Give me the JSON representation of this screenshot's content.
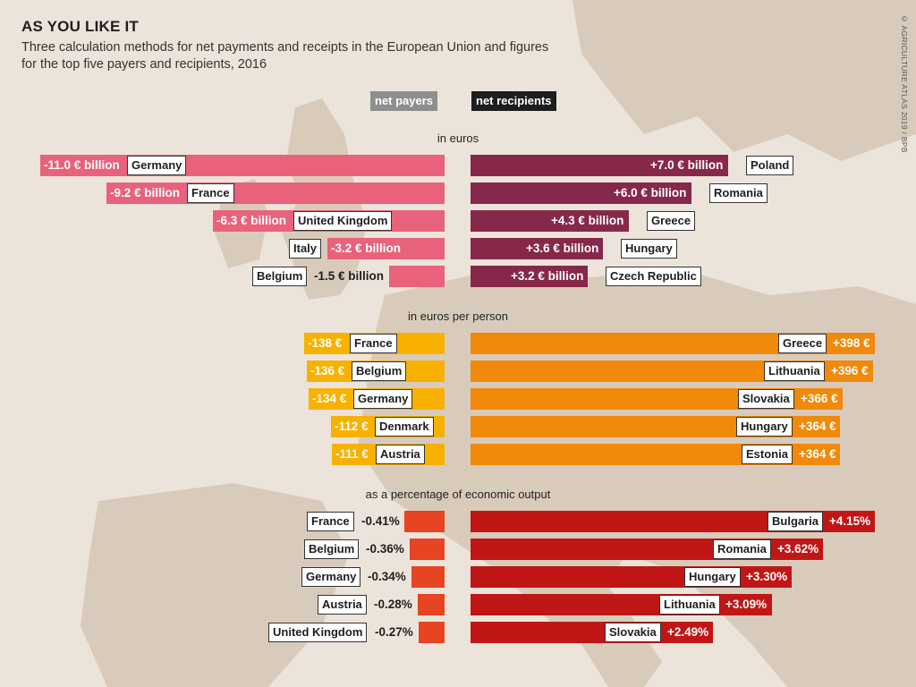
{
  "header": {
    "title": "AS YOU LIKE IT",
    "subtitle": "Three calculation methods for net payments and receipts in the European Union and figures for the top five payers and recipients, 2016",
    "credit": "© AGRICULTURE ATLAS 2019 / BPB"
  },
  "legend": {
    "payers": "net payers",
    "recipients": "net recipients"
  },
  "chart_data": [
    {
      "type": "bar",
      "title": "in euros",
      "unit": "billion euros",
      "colors": {
        "payers": "#e8627c",
        "recipients": "#86284a"
      },
      "payers": [
        {
          "country": "Germany",
          "value": -11.0,
          "label": "-11.0 € billion"
        },
        {
          "country": "France",
          "value": -9.2,
          "label": "-9.2 € billion"
        },
        {
          "country": "United Kingdom",
          "value": -6.3,
          "label": "-6.3 € billion"
        },
        {
          "country": "Italy",
          "value": -3.2,
          "label": "-3.2 € billion"
        },
        {
          "country": "Belgium",
          "value": -1.5,
          "label": "-1.5 € billion"
        }
      ],
      "recipients": [
        {
          "country": "Poland",
          "value": 7.0,
          "label": "+7.0 € billion"
        },
        {
          "country": "Romania",
          "value": 6.0,
          "label": "+6.0 € billion"
        },
        {
          "country": "Greece",
          "value": 4.3,
          "label": "+4.3 € billion"
        },
        {
          "country": "Hungary",
          "value": 3.6,
          "label": "+3.6 € billion"
        },
        {
          "country": "Czech Republic",
          "value": 3.2,
          "label": "+3.2 € billion"
        }
      ]
    },
    {
      "type": "bar",
      "title": "in euros per person",
      "unit": "euros per person",
      "colors": {
        "payers": "#f8b100",
        "recipients": "#f1890a"
      },
      "payers": [
        {
          "country": "France",
          "value": -138,
          "label": "-138 €"
        },
        {
          "country": "Belgium",
          "value": -136,
          "label": "-136 €"
        },
        {
          "country": "Germany",
          "value": -134,
          "label": "-134 €"
        },
        {
          "country": "Denmark",
          "value": -112,
          "label": "-112 €"
        },
        {
          "country": "Austria",
          "value": -111,
          "label": "-111 €"
        }
      ],
      "recipients": [
        {
          "country": "Greece",
          "value": 398,
          "label": "+398 €"
        },
        {
          "country": "Lithuania",
          "value": 396,
          "label": "+396 €"
        },
        {
          "country": "Slovakia",
          "value": 366,
          "label": "+366 €"
        },
        {
          "country": "Hungary",
          "value": 364,
          "label": "+364 €"
        },
        {
          "country": "Estonia",
          "value": 364,
          "label": "+364 €"
        }
      ]
    },
    {
      "type": "bar",
      "title": "as a percentage of economic output",
      "unit": "percent",
      "colors": {
        "payers": "#e64422",
        "recipients": "#c11616"
      },
      "payers": [
        {
          "country": "France",
          "value": -0.41,
          "label": "-0.41%"
        },
        {
          "country": "Belgium",
          "value": -0.36,
          "label": "-0.36%"
        },
        {
          "country": "Germany",
          "value": -0.34,
          "label": "-0.34%"
        },
        {
          "country": "Austria",
          "value": -0.28,
          "label": "-0.28%"
        },
        {
          "country": "United Kingdom",
          "value": -0.27,
          "label": "-0.27%"
        }
      ],
      "recipients": [
        {
          "country": "Bulgaria",
          "value": 4.15,
          "label": "+4.15%"
        },
        {
          "country": "Romania",
          "value": 3.62,
          "label": "+3.62%"
        },
        {
          "country": "Hungary",
          "value": 3.3,
          "label": "+3.30%"
        },
        {
          "country": "Lithuania",
          "value": 3.09,
          "label": "+3.09%"
        },
        {
          "country": "Slovakia",
          "value": 2.49,
          "label": "+2.49%"
        }
      ]
    }
  ]
}
